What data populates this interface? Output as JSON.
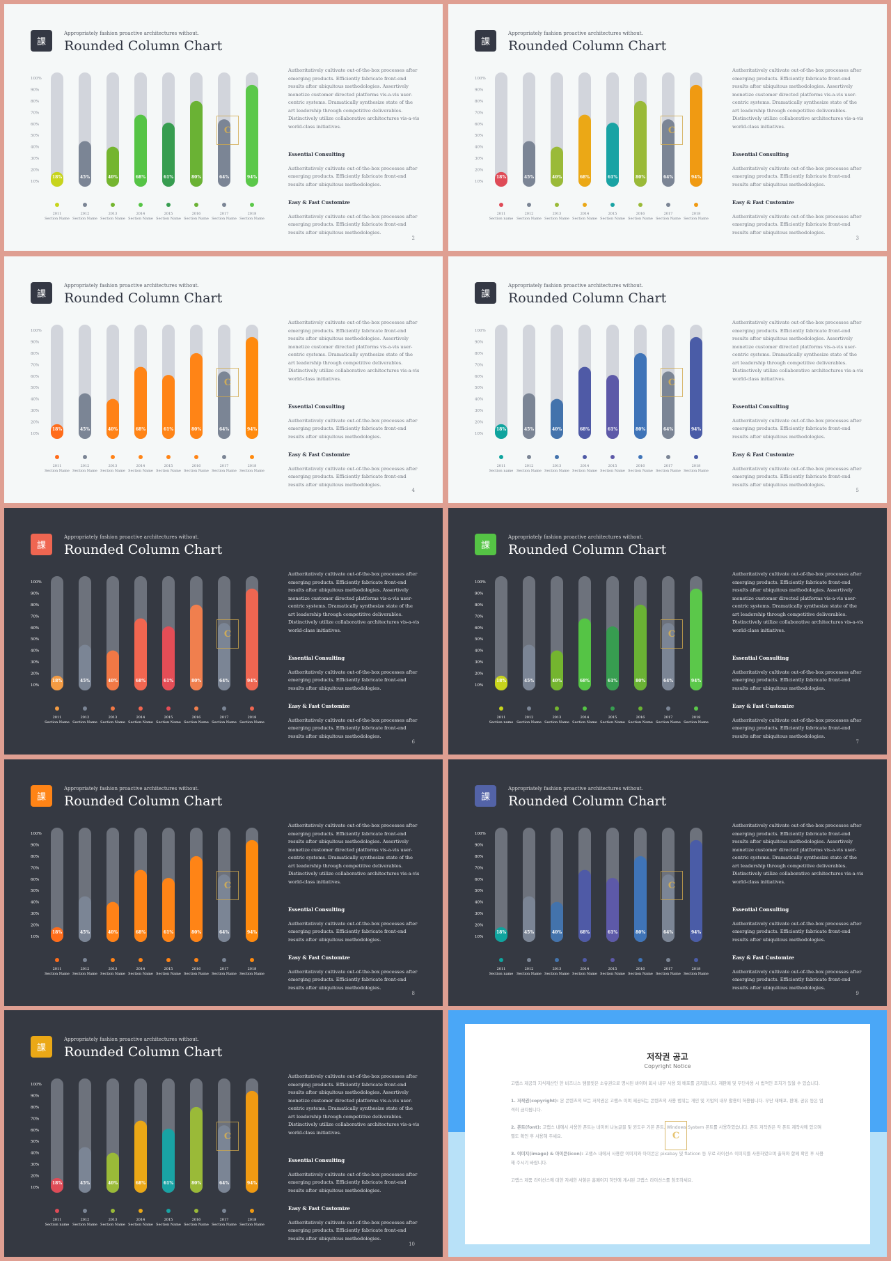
{
  "slide_common": {
    "title": "Rounded Column Chart",
    "subtitle": "Appropriately fashion proactive architectures without.",
    "title_icon": "課",
    "paragraph_1": "Authoritatively cultivate out-of-the-box processes after emerging products. Efficiently fabricate front-end results after ubiquitous methodologies. Assertively monetize customer directed platforms vis-a-vis user-centric systems. Dramatically synthesize state of the art leadership through competitive deliverables. Distinctively utilize collaborative architectures vis-a-vis world-class initiatives.",
    "heading_1": "Essential Consulting",
    "paragraph_2": "Authoritatively cultivate out-of-the-box processes after emerging products. Efficiently fabricate front-end results after ubiquitous methodologies.",
    "heading_2": "Easy & Fast Customize",
    "paragraph_3": "Authoritatively cultivate out-of-the-box processes after emerging products. Efficiently fabricate front-end results after ubiquitous methodologies.",
    "watermark_text": "C"
  },
  "chart_data": [
    {
      "type": "bar",
      "slide": 2,
      "ylim": [
        10,
        100
      ],
      "ytick_labels": [
        "100%",
        "90%",
        "80%",
        "70%",
        "60%",
        "50%",
        "40%",
        "30%",
        "20%",
        "10%"
      ],
      "categories": [
        "2011",
        "2012",
        "2013",
        "2014",
        "2015",
        "2016",
        "2017",
        "2018"
      ],
      "section_labels": [
        "Section Name",
        "Section Name",
        "Section Name",
        "Section Name",
        "Section Name",
        "Section Name",
        "Section Name",
        "Section Name"
      ],
      "values": [
        18,
        45,
        40,
        68,
        61,
        80,
        64,
        94
      ],
      "value_labels": [
        "18%",
        "45%",
        "40%",
        "68%",
        "61%",
        "80%",
        "64%",
        "94%"
      ],
      "bar_colors": [
        "#c7d41c",
        "#7b8595",
        "#74b52f",
        "#55c445",
        "#379d50",
        "#6ab234",
        "#7b8595",
        "#5bc84a"
      ]
    },
    {
      "type": "bar",
      "slide": 3,
      "ylim": [
        10,
        100
      ],
      "ytick_labels": [
        "100%",
        "90%",
        "80%",
        "70%",
        "60%",
        "50%",
        "40%",
        "30%",
        "20%",
        "10%"
      ],
      "categories": [
        "2011",
        "2012",
        "2013",
        "2014",
        "2015",
        "2016",
        "2017",
        "2018"
      ],
      "section_labels": [
        "Section name",
        "Section Name",
        "Section Name",
        "Section Name",
        "Section Name",
        "Section Name",
        "Section Name",
        "Section Name"
      ],
      "values": [
        18,
        45,
        40,
        68,
        61,
        80,
        64,
        94
      ],
      "value_labels": [
        "18%",
        "45%",
        "40%",
        "68%",
        "61%",
        "80%",
        "64%",
        "94%"
      ],
      "bar_colors": [
        "#df4b57",
        "#7b8595",
        "#9aba38",
        "#eba816",
        "#19a3a4",
        "#9aba38",
        "#7b8595",
        "#f09a12"
      ]
    },
    {
      "type": "bar",
      "slide": 4,
      "ylim": [
        10,
        100
      ],
      "ytick_labels": [
        "100%",
        "90%",
        "80%",
        "70%",
        "60%",
        "50%",
        "40%",
        "30%",
        "20%",
        "10%"
      ],
      "categories": [
        "2011",
        "2012",
        "2013",
        "2014",
        "2015",
        "2016",
        "2017",
        "2018"
      ],
      "section_labels": [
        "Section Name",
        "Section Name",
        "Section Name",
        "Section Name",
        "Section Name",
        "Section Name",
        "Section Name",
        "Section Name"
      ],
      "values": [
        18,
        45,
        40,
        68,
        61,
        80,
        64,
        94
      ],
      "value_labels": [
        "18%",
        "45%",
        "40%",
        "68%",
        "61%",
        "80%",
        "64%",
        "94%"
      ],
      "bar_colors": [
        "#ff6c1a",
        "#7b8595",
        "#ff8217",
        "#ff8416",
        "#ff8416",
        "#ff8416",
        "#7b8595",
        "#ff8a0e"
      ]
    },
    {
      "type": "bar",
      "slide": 5,
      "ylim": [
        10,
        100
      ],
      "ytick_labels": [
        "100%",
        "90%",
        "80%",
        "70%",
        "60%",
        "50%",
        "40%",
        "30%",
        "20%",
        "10%"
      ],
      "categories": [
        "2011",
        "2012",
        "2013",
        "2014",
        "2015",
        "2016",
        "2017",
        "2018"
      ],
      "section_labels": [
        "Section name",
        "Section Name",
        "Section Name",
        "Section Name",
        "Section Name",
        "Section Name",
        "Section Name",
        "Section Name"
      ],
      "values": [
        18,
        45,
        40,
        68,
        61,
        80,
        64,
        94
      ],
      "value_labels": [
        "18%",
        "45%",
        "40%",
        "68%",
        "61%",
        "80%",
        "64%",
        "94%"
      ],
      "bar_colors": [
        "#0fa49e",
        "#7b8595",
        "#4373ac",
        "#4f5aa6",
        "#5d59a8",
        "#3f74b8",
        "#7b8595",
        "#4a5ca7"
      ]
    },
    {
      "type": "bar",
      "slide": 6,
      "ylim": [
        10,
        100
      ],
      "ytick_labels": [
        "100%",
        "90%",
        "80%",
        "70%",
        "60%",
        "50%",
        "40%",
        "30%",
        "20%",
        "10%"
      ],
      "categories": [
        "2011",
        "2012",
        "2013",
        "2014",
        "2015",
        "2016",
        "2017",
        "2018"
      ],
      "section_labels": [
        "Section Name",
        "Section Name",
        "Section Name",
        "Section Name",
        "Section Name",
        "Section Name",
        "Section Name",
        "Section Name"
      ],
      "values": [
        18,
        45,
        40,
        68,
        61,
        80,
        64,
        94
      ],
      "value_labels": [
        "18%",
        "45%",
        "40%",
        "68%",
        "61%",
        "80%",
        "64%",
        "94%"
      ],
      "bar_colors": [
        "#f39b43",
        "#7b8595",
        "#f17845",
        "#f26650",
        "#e44d56",
        "#f07f4e",
        "#7b8595",
        "#ef6651"
      ]
    },
    {
      "type": "bar",
      "slide": 7,
      "ylim": [
        10,
        100
      ],
      "ytick_labels": [
        "100%",
        "90%",
        "80%",
        "70%",
        "60%",
        "50%",
        "40%",
        "30%",
        "20%",
        "10%"
      ],
      "categories": [
        "2011",
        "2012",
        "2013",
        "2014",
        "2015",
        "2016",
        "2017",
        "2018"
      ],
      "section_labels": [
        "Section name",
        "Section Name",
        "Section Name",
        "Section Name",
        "Section Name",
        "Section Name",
        "Section Name",
        "Section Name"
      ],
      "values": [
        18,
        45,
        40,
        68,
        61,
        80,
        64,
        94
      ],
      "value_labels": [
        "18%",
        "45%",
        "40%",
        "68%",
        "61%",
        "80%",
        "64%",
        "94%"
      ],
      "bar_colors": [
        "#c7d41c",
        "#7b8595",
        "#74b52f",
        "#55c445",
        "#379d50",
        "#6ab234",
        "#7b8595",
        "#5bc84a"
      ]
    },
    {
      "type": "bar",
      "slide": 8,
      "ylim": [
        10,
        100
      ],
      "ytick_labels": [
        "100%",
        "90%",
        "80%",
        "70%",
        "60%",
        "50%",
        "40%",
        "30%",
        "20%",
        "10%"
      ],
      "categories": [
        "2011",
        "2012",
        "2013",
        "2014",
        "2015",
        "2016",
        "2017",
        "2018"
      ],
      "section_labels": [
        "Section Name",
        "Section Name",
        "Section Name",
        "Section Name",
        "Section Name",
        "Section Name",
        "Section Name",
        "Section Name"
      ],
      "values": [
        18,
        45,
        40,
        68,
        61,
        80,
        64,
        94
      ],
      "value_labels": [
        "18%",
        "45%",
        "40%",
        "68%",
        "61%",
        "80%",
        "64%",
        "94%"
      ],
      "bar_colors": [
        "#ff6c1a",
        "#7b8595",
        "#ff8217",
        "#ff8416",
        "#ff8416",
        "#ff8416",
        "#7b8595",
        "#ff8a0e"
      ]
    },
    {
      "type": "bar",
      "slide": 9,
      "ylim": [
        10,
        100
      ],
      "ytick_labels": [
        "100%",
        "90%",
        "80%",
        "70%",
        "60%",
        "50%",
        "40%",
        "30%",
        "20%",
        "10%"
      ],
      "categories": [
        "2011",
        "2012",
        "2013",
        "2014",
        "2015",
        "2016",
        "2017",
        "2018"
      ],
      "section_labels": [
        "Section name",
        "Section Name",
        "Section Name",
        "Section Name",
        "Section Name",
        "Section Name",
        "Section Name",
        "Section Name"
      ],
      "values": [
        18,
        45,
        40,
        68,
        61,
        80,
        64,
        94
      ],
      "value_labels": [
        "18%",
        "45%",
        "40%",
        "68%",
        "61%",
        "80%",
        "64%",
        "94%"
      ],
      "bar_colors": [
        "#0fa49e",
        "#7b8595",
        "#4373ac",
        "#4f5aa6",
        "#5d59a8",
        "#3f74b8",
        "#7b8595",
        "#4a5ca7"
      ]
    },
    {
      "type": "bar",
      "slide": 10,
      "ylim": [
        10,
        100
      ],
      "ytick_labels": [
        "100%",
        "90%",
        "80%",
        "70%",
        "60%",
        "50%",
        "40%",
        "30%",
        "20%",
        "10%"
      ],
      "categories": [
        "2011",
        "2012",
        "2013",
        "2014",
        "2015",
        "2016",
        "2017",
        "2018"
      ],
      "section_labels": [
        "Section name",
        "Section Name",
        "Section Name",
        "Section Name",
        "Section Name",
        "Section Name",
        "Section Name",
        "Section Name"
      ],
      "values": [
        18,
        45,
        40,
        68,
        61,
        80,
        64,
        94
      ],
      "value_labels": [
        "18%",
        "45%",
        "40%",
        "68%",
        "61%",
        "80%",
        "64%",
        "94%"
      ],
      "bar_colors": [
        "#df4b57",
        "#7b8595",
        "#9aba38",
        "#eba816",
        "#19a3a4",
        "#9aba38",
        "#7b8595",
        "#f09a12"
      ]
    }
  ],
  "slides": [
    {
      "page": "2",
      "theme": "light",
      "icon_color": "#343844"
    },
    {
      "page": "3",
      "theme": "light",
      "icon_color": "#343844"
    },
    {
      "page": "4",
      "theme": "light",
      "icon_color": "#343844"
    },
    {
      "page": "5",
      "theme": "light",
      "icon_color": "#343844"
    },
    {
      "page": "6",
      "theme": "dark",
      "icon_color": "#ef6651"
    },
    {
      "page": "7",
      "theme": "dark",
      "icon_color": "#55c445"
    },
    {
      "page": "8",
      "theme": "dark",
      "icon_color": "#ff8416"
    },
    {
      "page": "9",
      "theme": "dark",
      "icon_color": "#5363a7"
    },
    {
      "page": "10",
      "theme": "dark",
      "icon_color": "#eba816"
    }
  ],
  "notice": {
    "title": "저작권 공고",
    "subtitle": "Copyright Notice",
    "intro": "고랩스 제공의 지식재산인 한 비즈니스 탬플릿은 소유권으로 명시된 바이며 회사 내부 사용 외 배포를 금지합니다. 재판매 및 무단사용 시 법적인 조치가 있을 수 있습니다.",
    "item_1_label": "1. 저작권(copyright):",
    "item_1_text": "본 콘텐츠의 모든 저작권은 고랩스 이며 제공되는 콘텐츠의 사용 범위는 개인 및 기업의 내부 활용이 허용됩니다. 무단 재배포, 판매, 공유 등은 엄격히 금지됩니다.",
    "item_2_label": "2. 폰트(font):",
    "item_2_text": "고랩스 내에서 사용한 폰트는 네이버 나눔글꼴 및 윈도우 기본 폰트, Windows System 폰트를 사용하였습니다. 폰트 저작권은 각 폰트 제작사에 있으며 별도 확인 후 사용해 주세요.",
    "item_3_label": "3. 이미지(image) & 아이콘(icon):",
    "item_3_text": "고랩스 내에서 사용한 이미지와 아이콘은 pixabay 및 flaticon 등 무료 라이선스 이미지를 사용하였으며 출처와 함께 확인 후 사용해 주시기 바랍니다.",
    "closing": "고랩스 제품 라이선스에 대한 자세한 사항은 홈페이지 하단에 게시된 고랩스 라이선스를 참조하세요."
  }
}
